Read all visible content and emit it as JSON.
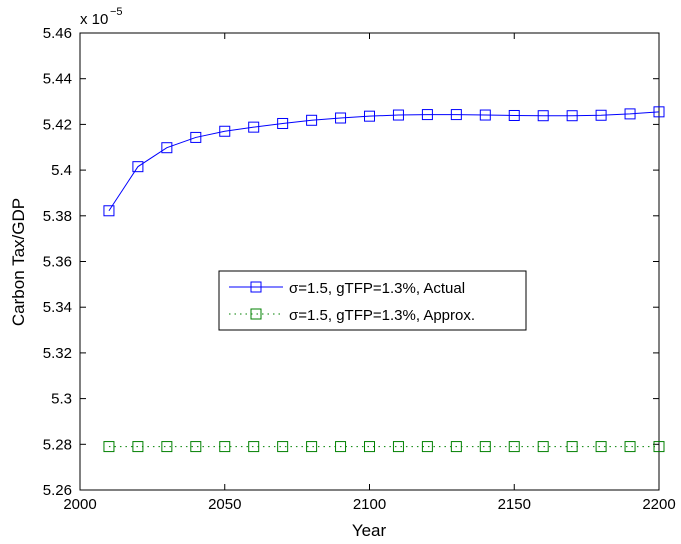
{
  "chart_data": {
    "type": "line",
    "xlabel": "Year",
    "ylabel": "Carbon Tax/GDP",
    "exponent_base": "x 10",
    "exponent_power": "−5",
    "xlim": [
      2000,
      2200
    ],
    "ylim": [
      5.26,
      5.46
    ],
    "xticks": [
      2000,
      2050,
      2100,
      2150,
      2200
    ],
    "yticks": [
      5.26,
      5.28,
      5.3,
      5.32,
      5.34,
      5.36,
      5.38,
      5.4,
      5.42,
      5.44,
      5.46
    ],
    "ytick_labels": [
      "5.26",
      "5.28",
      "5.3",
      "5.32",
      "5.34",
      "5.36",
      "5.38",
      "5.4",
      "5.42",
      "5.44",
      "5.46"
    ],
    "grid": false,
    "legend_position": "center-left",
    "x": [
      2010,
      2020,
      2030,
      2040,
      2050,
      2060,
      2070,
      2080,
      2090,
      2100,
      2110,
      2120,
      2130,
      2140,
      2150,
      2160,
      2170,
      2180,
      2190,
      2200
    ],
    "series": [
      {
        "name": "σ=1.5, gTFP=1.3%, Actual",
        "color": "#0000ff",
        "linestyle": "solid",
        "marker": "square",
        "values": [
          5.3822,
          5.4015,
          5.4098,
          5.4143,
          5.417,
          5.4188,
          5.4204,
          5.4218,
          5.4228,
          5.4236,
          5.4241,
          5.4243,
          5.4243,
          5.4241,
          5.4239,
          5.4238,
          5.4238,
          5.424,
          5.4246,
          5.4255
        ]
      },
      {
        "name": "σ=1.5, gTFP=1.3%, Approx.",
        "color": "#008000",
        "linestyle": "dotted",
        "marker": "square",
        "values": [
          5.279,
          5.279,
          5.279,
          5.279,
          5.279,
          5.279,
          5.279,
          5.279,
          5.279,
          5.279,
          5.279,
          5.279,
          5.279,
          5.279,
          5.279,
          5.279,
          5.279,
          5.279,
          5.279,
          5.279
        ]
      }
    ]
  }
}
